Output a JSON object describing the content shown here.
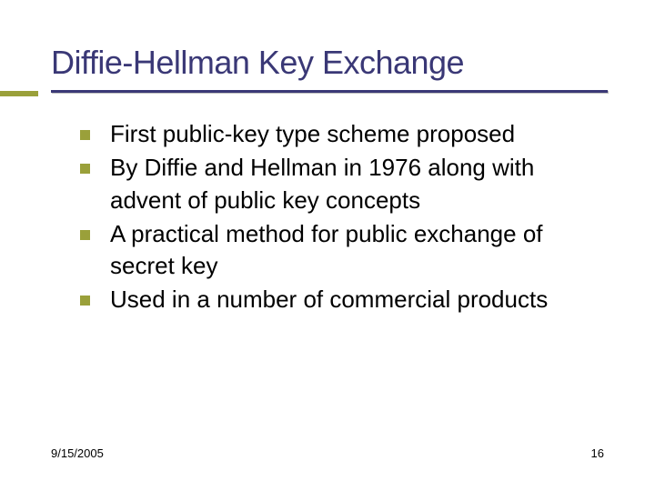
{
  "slide": {
    "title": "Diffie-Hellman Key Exchange",
    "accent_color": "#9aa03a",
    "title_color": "#3a3876",
    "underline_color": "#3a3876",
    "text_color": "#000000",
    "background_color": "#ffffff",
    "title_fontsize": 36,
    "body_fontsize": 26,
    "footer_fontsize": 13,
    "bullets": [
      {
        "text": "First public-key type scheme proposed"
      },
      {
        "text": "By Diffie and Hellman in 1976 along with advent of public key concepts"
      },
      {
        "text": "A practical method for public exchange of secret key"
      },
      {
        "text": "Used in a number of commercial products"
      }
    ],
    "footer": {
      "date": "9/15/2005",
      "page": "16"
    }
  }
}
